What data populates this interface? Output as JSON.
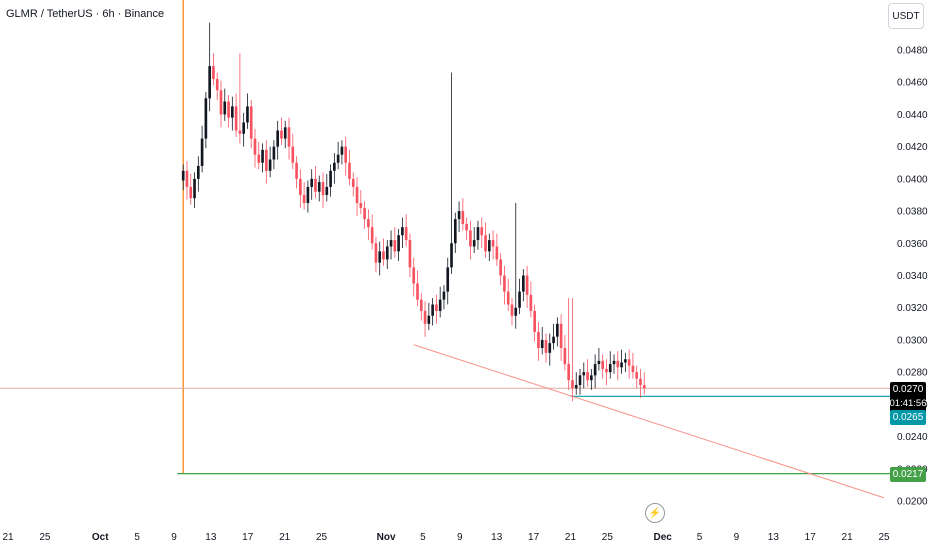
{
  "header": {
    "title": "GLMR / TetherUS · 6h · Binance",
    "unit_label": "USDT"
  },
  "badges": {
    "current_price": "0.0270",
    "countdown": "01:41:56",
    "support_price": "0.0265",
    "target_price": "0.0217"
  },
  "icons": {
    "bolt": "lightning-bolt-icon"
  },
  "colors": {
    "up": "#131722",
    "down": "#f7525f",
    "support": "#0097a7",
    "target": "#43a047",
    "trendline": "#f7928a",
    "current": "#e0a9a0",
    "vertical": "#f57c00"
  },
  "chart_data": {
    "type": "candlestick",
    "title": "GLMR / TetherUS · 6h · Binance",
    "xlabel": "",
    "ylabel": "",
    "ylim": [
      0.0196,
      0.05
    ],
    "yticks": [
      "0.0480",
      "0.0460",
      "0.0440",
      "0.0420",
      "0.0400",
      "0.0380",
      "0.0360",
      "0.0340",
      "0.0320",
      "0.0300",
      "0.0280",
      "0.0260",
      "0.0240",
      "0.0220",
      "0.0200"
    ],
    "xticks": [
      "21",
      "25",
      "Oct",
      "5",
      "9",
      "13",
      "17",
      "21",
      "25",
      "Nov",
      "5",
      "9",
      "13",
      "17",
      "21",
      "25",
      "Dec",
      "5",
      "9",
      "13",
      "17",
      "21",
      "25"
    ],
    "x_start": "Sep 21",
    "x_end": "Dec 25",
    "grid": false,
    "legend": "none",
    "series": [
      {
        "start": "Oct 10",
        "end": "Nov 29",
        "values": [
          0.0405,
          0.0395,
          0.0388,
          0.04,
          0.0408,
          0.0425,
          0.045,
          0.047,
          0.0462,
          0.0455,
          0.044,
          0.0448,
          0.0438,
          0.0445,
          0.043,
          0.0428,
          0.0435,
          0.0445,
          0.0425,
          0.0415,
          0.041,
          0.0418,
          0.0405,
          0.0412,
          0.042,
          0.043,
          0.0425,
          0.0432,
          0.042,
          0.041,
          0.04,
          0.039,
          0.0385,
          0.0395,
          0.04,
          0.0392,
          0.0398,
          0.039,
          0.0395,
          0.0405,
          0.041,
          0.0415,
          0.042,
          0.041,
          0.04,
          0.0395,
          0.0385,
          0.0382,
          0.0375,
          0.037,
          0.036,
          0.0348,
          0.0355,
          0.035,
          0.0358,
          0.0362,
          0.0355,
          0.0365,
          0.037,
          0.0362,
          0.0345,
          0.0335,
          0.0325,
          0.0318,
          0.031,
          0.0315,
          0.0322,
          0.0318,
          0.0325,
          0.033,
          0.0345,
          0.036,
          0.0375,
          0.038,
          0.0372,
          0.0368,
          0.0358,
          0.0362,
          0.037,
          0.0365,
          0.0355,
          0.0362,
          0.0358,
          0.035,
          0.034,
          0.033,
          0.0322,
          0.0315,
          0.032,
          0.033,
          0.034,
          0.0328,
          0.0318,
          0.0305,
          0.0295,
          0.03,
          0.0292,
          0.0298,
          0.0302,
          0.031,
          0.0295,
          0.0285,
          0.0275,
          0.027,
          0.0272,
          0.0278,
          0.028,
          0.0275,
          0.0278,
          0.0285,
          0.0287,
          0.0282,
          0.028,
          0.0285,
          0.0287,
          0.0283,
          0.0286,
          0.0288,
          0.0284,
          0.028,
          0.0276,
          0.0272,
          0.027
        ]
      }
    ],
    "wick_highs": [
      {
        "x": "Oct 13",
        "y": 0.0497
      },
      {
        "x": "Oct 16",
        "y": 0.0478
      },
      {
        "x": "Nov 8",
        "y": 0.0466
      },
      {
        "x": "Nov 15",
        "y": 0.0385
      },
      {
        "x": "Nov 21",
        "y": 0.0326
      }
    ],
    "annotations": {
      "vertical_marker": {
        "x": "Oct 10"
      },
      "target_line": {
        "y": 0.0217,
        "from": "Oct 10",
        "label": "0.0217"
      },
      "current_price_line": {
        "y": 0.027,
        "label": "0.0270",
        "countdown": "01:41:56"
      },
      "support_line": {
        "y": 0.0265,
        "from": "Nov 21",
        "label": "0.0265"
      },
      "trendline": {
        "from": {
          "x": "Nov 4",
          "y": 0.0297
        },
        "to": {
          "x": "Dec 25",
          "y": 0.0202
        }
      }
    }
  }
}
